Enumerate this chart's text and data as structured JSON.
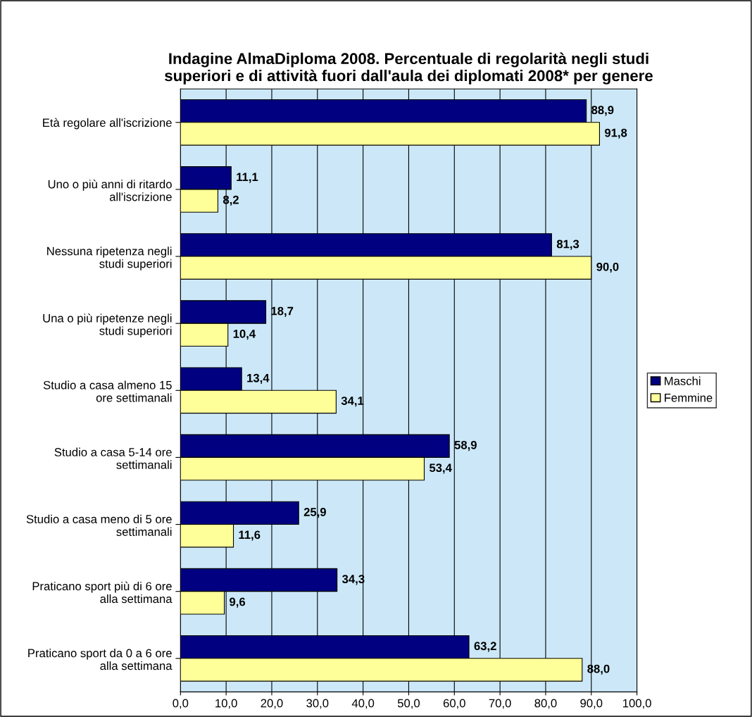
{
  "chart_data": {
    "type": "bar",
    "orientation": "horizontal",
    "title": "Indagine AlmaDiploma 2008. Percentuale di regolarità negli studi\nsuperiori e di attività fuori dall'aula dei diplomati 2008* per genere",
    "categories": [
      "Età regolare all'iscrizione",
      "Uno o più anni di ritardo\nall'iscrizione",
      "Nessuna ripetenza negli\nstudi superiori",
      "Una o più ripetenze negli\nstudi superiori",
      "Studio a casa almeno 15\nore settimanali",
      "Studio a casa 5-14 ore\nsettimanali",
      "Studio a casa meno di 5 ore\nsettimanali",
      "Praticano sport più di 6 ore\nalla settimana",
      "Praticano sport da 0 a 6 ore\nalla settimana"
    ],
    "series": [
      {
        "name": "Maschi",
        "color": "#000080",
        "values": [
          88.9,
          11.1,
          81.3,
          18.7,
          13.4,
          58.9,
          25.9,
          34.3,
          63.2
        ],
        "value_labels": [
          "88,9",
          "11,1",
          "81,3",
          "18,7",
          "13,4",
          "58,9",
          "25,9",
          "34,3",
          "63,2"
        ]
      },
      {
        "name": "Femmine",
        "color": "#ffff99",
        "values": [
          91.8,
          8.2,
          90.0,
          10.4,
          34.1,
          53.4,
          11.6,
          9.6,
          88.0
        ],
        "value_labels": [
          "91,8",
          "8,2",
          "90,0",
          "10,4",
          "34,1",
          "53,4",
          "11,6",
          "9,6",
          "88,0"
        ]
      }
    ],
    "xlim": [
      0,
      100
    ],
    "xticks": [
      {
        "value": 0,
        "label": "0,0"
      },
      {
        "value": 10,
        "label": "10,0"
      },
      {
        "value": 20,
        "label": "20,0"
      },
      {
        "value": 30,
        "label": "30,0"
      },
      {
        "value": 40,
        "label": "40,0"
      },
      {
        "value": 50,
        "label": "50,0"
      },
      {
        "value": 60,
        "label": "60,0"
      },
      {
        "value": 70,
        "label": "70,0"
      },
      {
        "value": 80,
        "label": "80,0"
      },
      {
        "value": 90,
        "label": "90,0"
      },
      {
        "value": 100,
        "label": "100,0"
      }
    ],
    "grid": "x",
    "legend": "right"
  }
}
